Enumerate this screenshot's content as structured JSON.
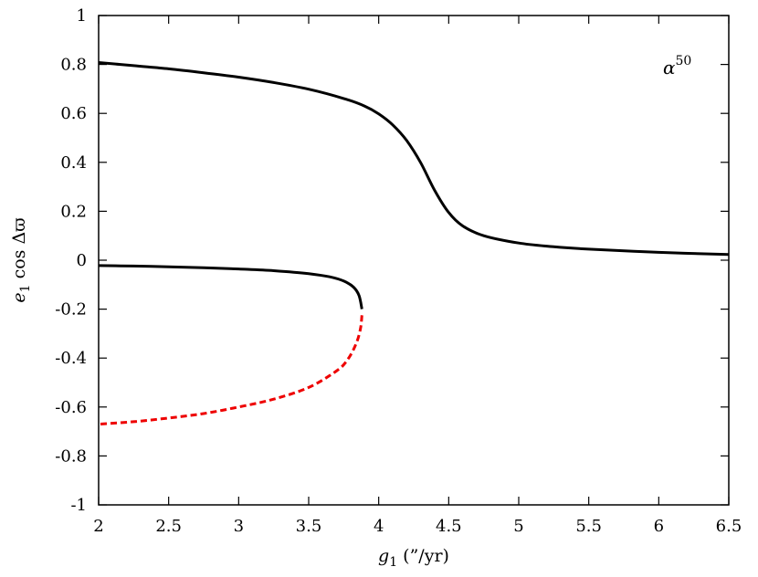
{
  "chart_data": {
    "type": "line",
    "xlim": [
      2,
      6.5
    ],
    "ylim": [
      -1,
      1
    ],
    "xticks": [
      2,
      2.5,
      3,
      3.5,
      4,
      4.5,
      5,
      5.5,
      6,
      6.5
    ],
    "xtick_labels": [
      "2",
      "2.5",
      "3",
      "3.5",
      "4",
      "4.5",
      "5",
      "5.5",
      "6",
      "6.5"
    ],
    "yticks": [
      -1,
      -0.8,
      -0.6,
      -0.4,
      -0.2,
      0,
      0.2,
      0.4,
      0.6,
      0.8,
      1
    ],
    "ytick_labels": [
      "-1",
      "-0.8",
      "-0.6",
      "-0.4",
      "-0.2",
      "0",
      "0.2",
      "0.4",
      "0.6",
      "0.8",
      "1"
    ],
    "xlabel": {
      "var": "g",
      "sub": "1",
      "unit": " (”/yr)"
    },
    "ylabel": {
      "var": "e",
      "sub": "1",
      "rest": " cos Δϖ"
    },
    "annotation": {
      "base": "α",
      "sup": "50"
    },
    "grid": false,
    "series": [
      {
        "color": "#000000",
        "style": "solid",
        "x": [
          2.0,
          2.25,
          2.5,
          2.75,
          3.0,
          3.25,
          3.5,
          3.75,
          3.9,
          4.0,
          4.1,
          4.2,
          4.3,
          4.4,
          4.5,
          4.6,
          4.75,
          5.0,
          5.25,
          5.5,
          6.0,
          6.5
        ],
        "y": [
          0.808,
          0.795,
          0.782,
          0.766,
          0.748,
          0.726,
          0.699,
          0.661,
          0.63,
          0.598,
          0.553,
          0.489,
          0.398,
          0.285,
          0.195,
          0.14,
          0.1,
          0.07,
          0.055,
          0.045,
          0.032,
          0.023
        ]
      },
      {
        "color": "#000000",
        "style": "solid",
        "x": [
          2.0,
          2.25,
          2.5,
          2.75,
          3.0,
          3.25,
          3.5,
          3.65,
          3.75,
          3.82,
          3.86,
          3.88
        ],
        "y": [
          -0.022,
          -0.024,
          -0.027,
          -0.031,
          -0.036,
          -0.043,
          -0.055,
          -0.068,
          -0.085,
          -0.11,
          -0.145,
          -0.2
        ]
      },
      {
        "color": "#ee0000",
        "style": "dashed",
        "x": [
          3.88,
          3.87,
          3.84,
          3.78,
          3.7,
          3.5,
          3.25,
          3.0,
          2.75,
          2.5,
          2.25,
          2.0
        ],
        "y": [
          -0.225,
          -0.28,
          -0.34,
          -0.405,
          -0.452,
          -0.52,
          -0.568,
          -0.6,
          -0.627,
          -0.645,
          -0.66,
          -0.67
        ]
      }
    ]
  }
}
